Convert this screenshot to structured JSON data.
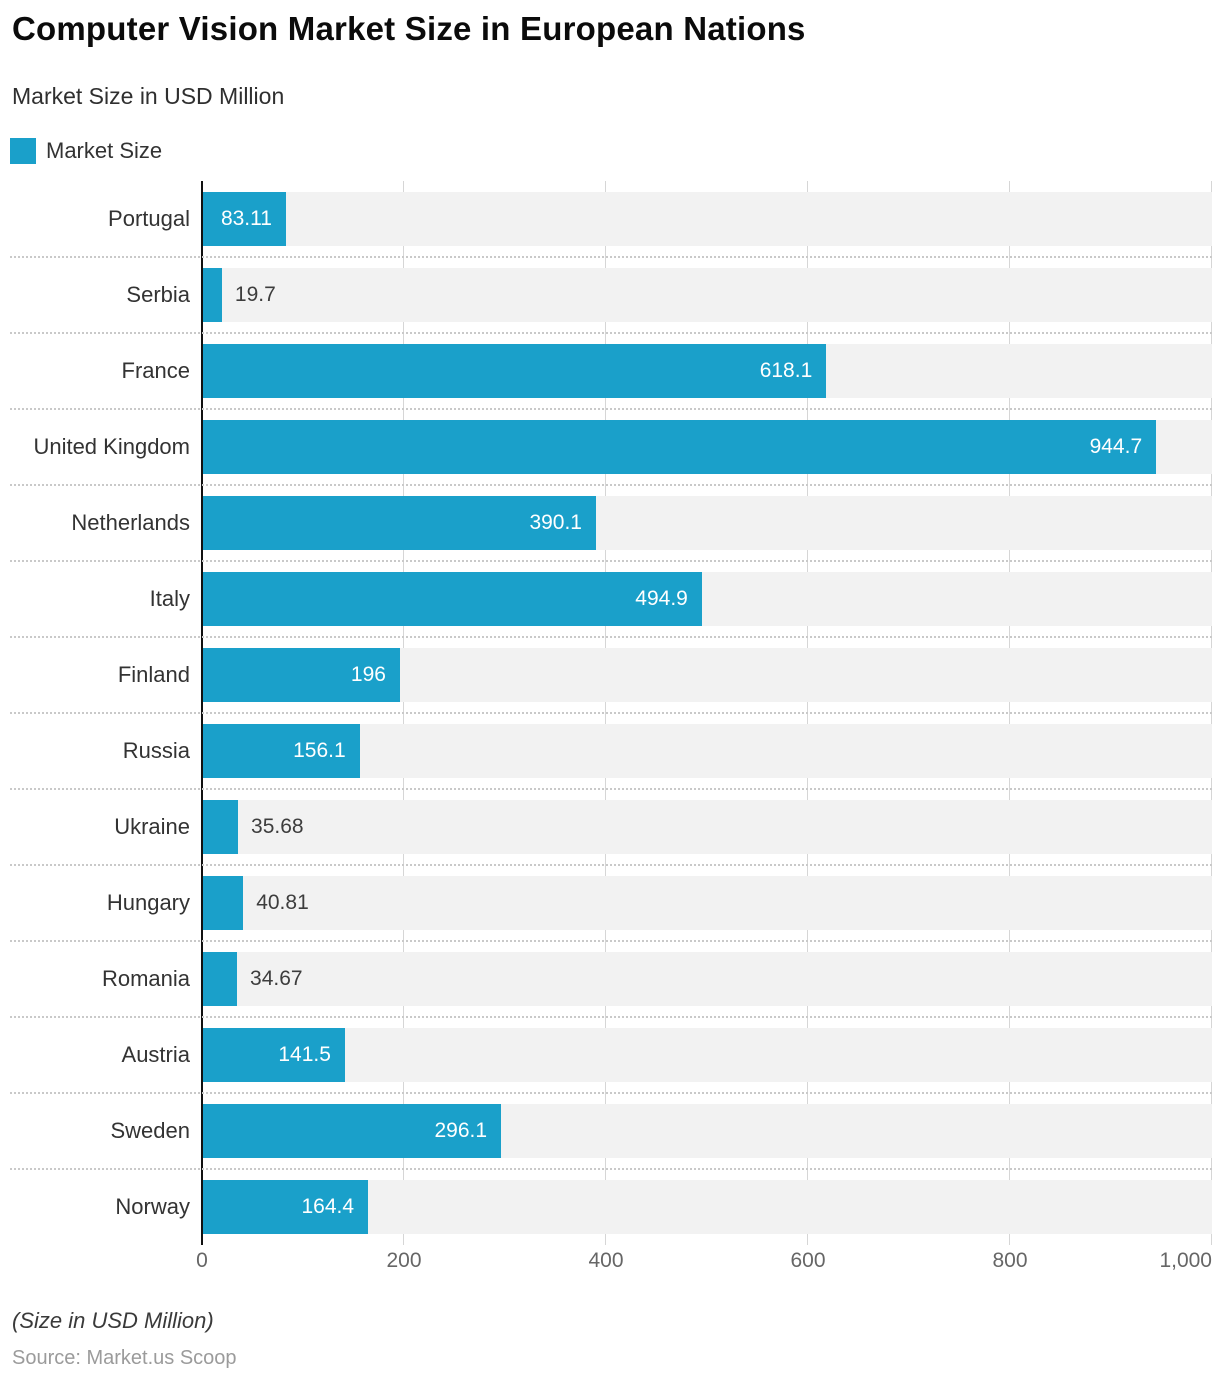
{
  "header": {
    "title": "Computer Vision Market Size in European Nations",
    "subtitle": "Market Size in USD Million"
  },
  "legend": {
    "label": "Market Size"
  },
  "colors": {
    "bar": "#1aa0ca",
    "band": "#f2f2f2",
    "gridline": "#d6d6d6",
    "axis_line": "#111111",
    "dotted_separator": "#c9c9c9",
    "value_label_inside": "#ffffff",
    "value_label_outside": "#3d3d3d",
    "category_label": "#333333",
    "tick_label": "#666666"
  },
  "chart_data": {
    "type": "bar",
    "orientation": "horizontal",
    "title": "Computer Vision Market Size in European Nations",
    "subtitle": "Market Size in USD Million",
    "series_name": "Market Size",
    "categories": [
      "Portugal",
      "Serbia",
      "France",
      "United Kingdom",
      "Netherlands",
      "Italy",
      "Finland",
      "Russia",
      "Ukraine",
      "Hungary",
      "Romania",
      "Austria",
      "Sweden",
      "Norway"
    ],
    "values": [
      83.11,
      19.7,
      618.1,
      944.7,
      390.1,
      494.9,
      196,
      156.1,
      35.68,
      40.81,
      34.67,
      141.5,
      296.1,
      164.4
    ],
    "value_labels": [
      "83.11",
      "19.7",
      "618.1",
      "944.7",
      "390.1",
      "494.9",
      "196",
      "156.1",
      "35.68",
      "40.81",
      "34.67",
      "141.5",
      "296.1",
      "164.4"
    ],
    "xlabel": "",
    "ylabel": "",
    "xlim": [
      0,
      1000
    ],
    "xticks": {
      "values": [
        0,
        200,
        400,
        600,
        800,
        1000
      ],
      "labels": [
        "0",
        "200",
        "400",
        "600",
        "800",
        "1,000"
      ]
    },
    "grid": "vertical-on",
    "legend_position": "top-left"
  },
  "footer": {
    "note": "(Size in USD Million)",
    "source": "Source: Market.us Scoop"
  }
}
